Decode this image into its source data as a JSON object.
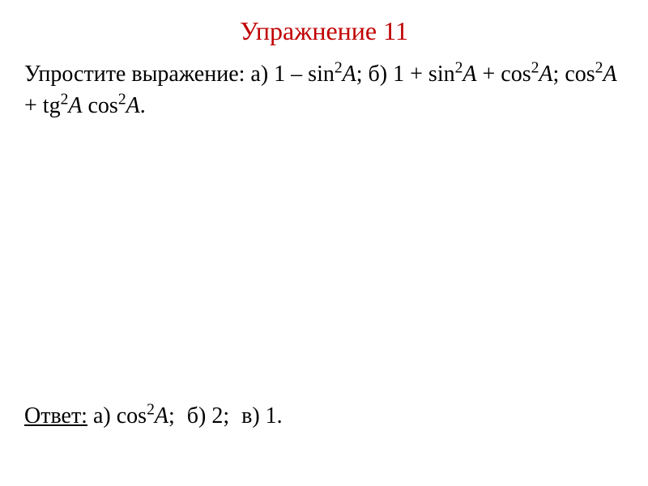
{
  "title": "Упражнение 11",
  "problem": {
    "label": "Упростите выражение:",
    "part_a_label": "а)",
    "part_a_expr_1": "1 – sin",
    "part_a_var": "A",
    "part_b_label": "б)",
    "part_b_expr_1": "1 + sin",
    "part_b_var_1": "A",
    "part_b_expr_2": " + cos",
    "part_b_var_2": "A",
    "part_c_expr_1": "cos",
    "part_c_var_1": "A",
    "part_c_expr_2": " + tg",
    "part_c_var_2": "A",
    "part_c_expr_3": " cos",
    "part_c_var_3": "A",
    "semicolon": ";",
    "period": "."
  },
  "answer": {
    "label": "Ответ:",
    "part_a_label": "а)",
    "part_a_expr": "cos",
    "part_a_var": "A",
    "part_b_label": "б)",
    "part_b_value": "2",
    "part_c_label": "в)",
    "part_c_value": "1",
    "semicolon": ";",
    "period": "."
  },
  "styling": {
    "title_color": "#c00000",
    "text_color": "#000000",
    "background_color": "#ffffff",
    "title_fontsize": 32,
    "body_fontsize": 28,
    "font_family": "Times New Roman"
  }
}
